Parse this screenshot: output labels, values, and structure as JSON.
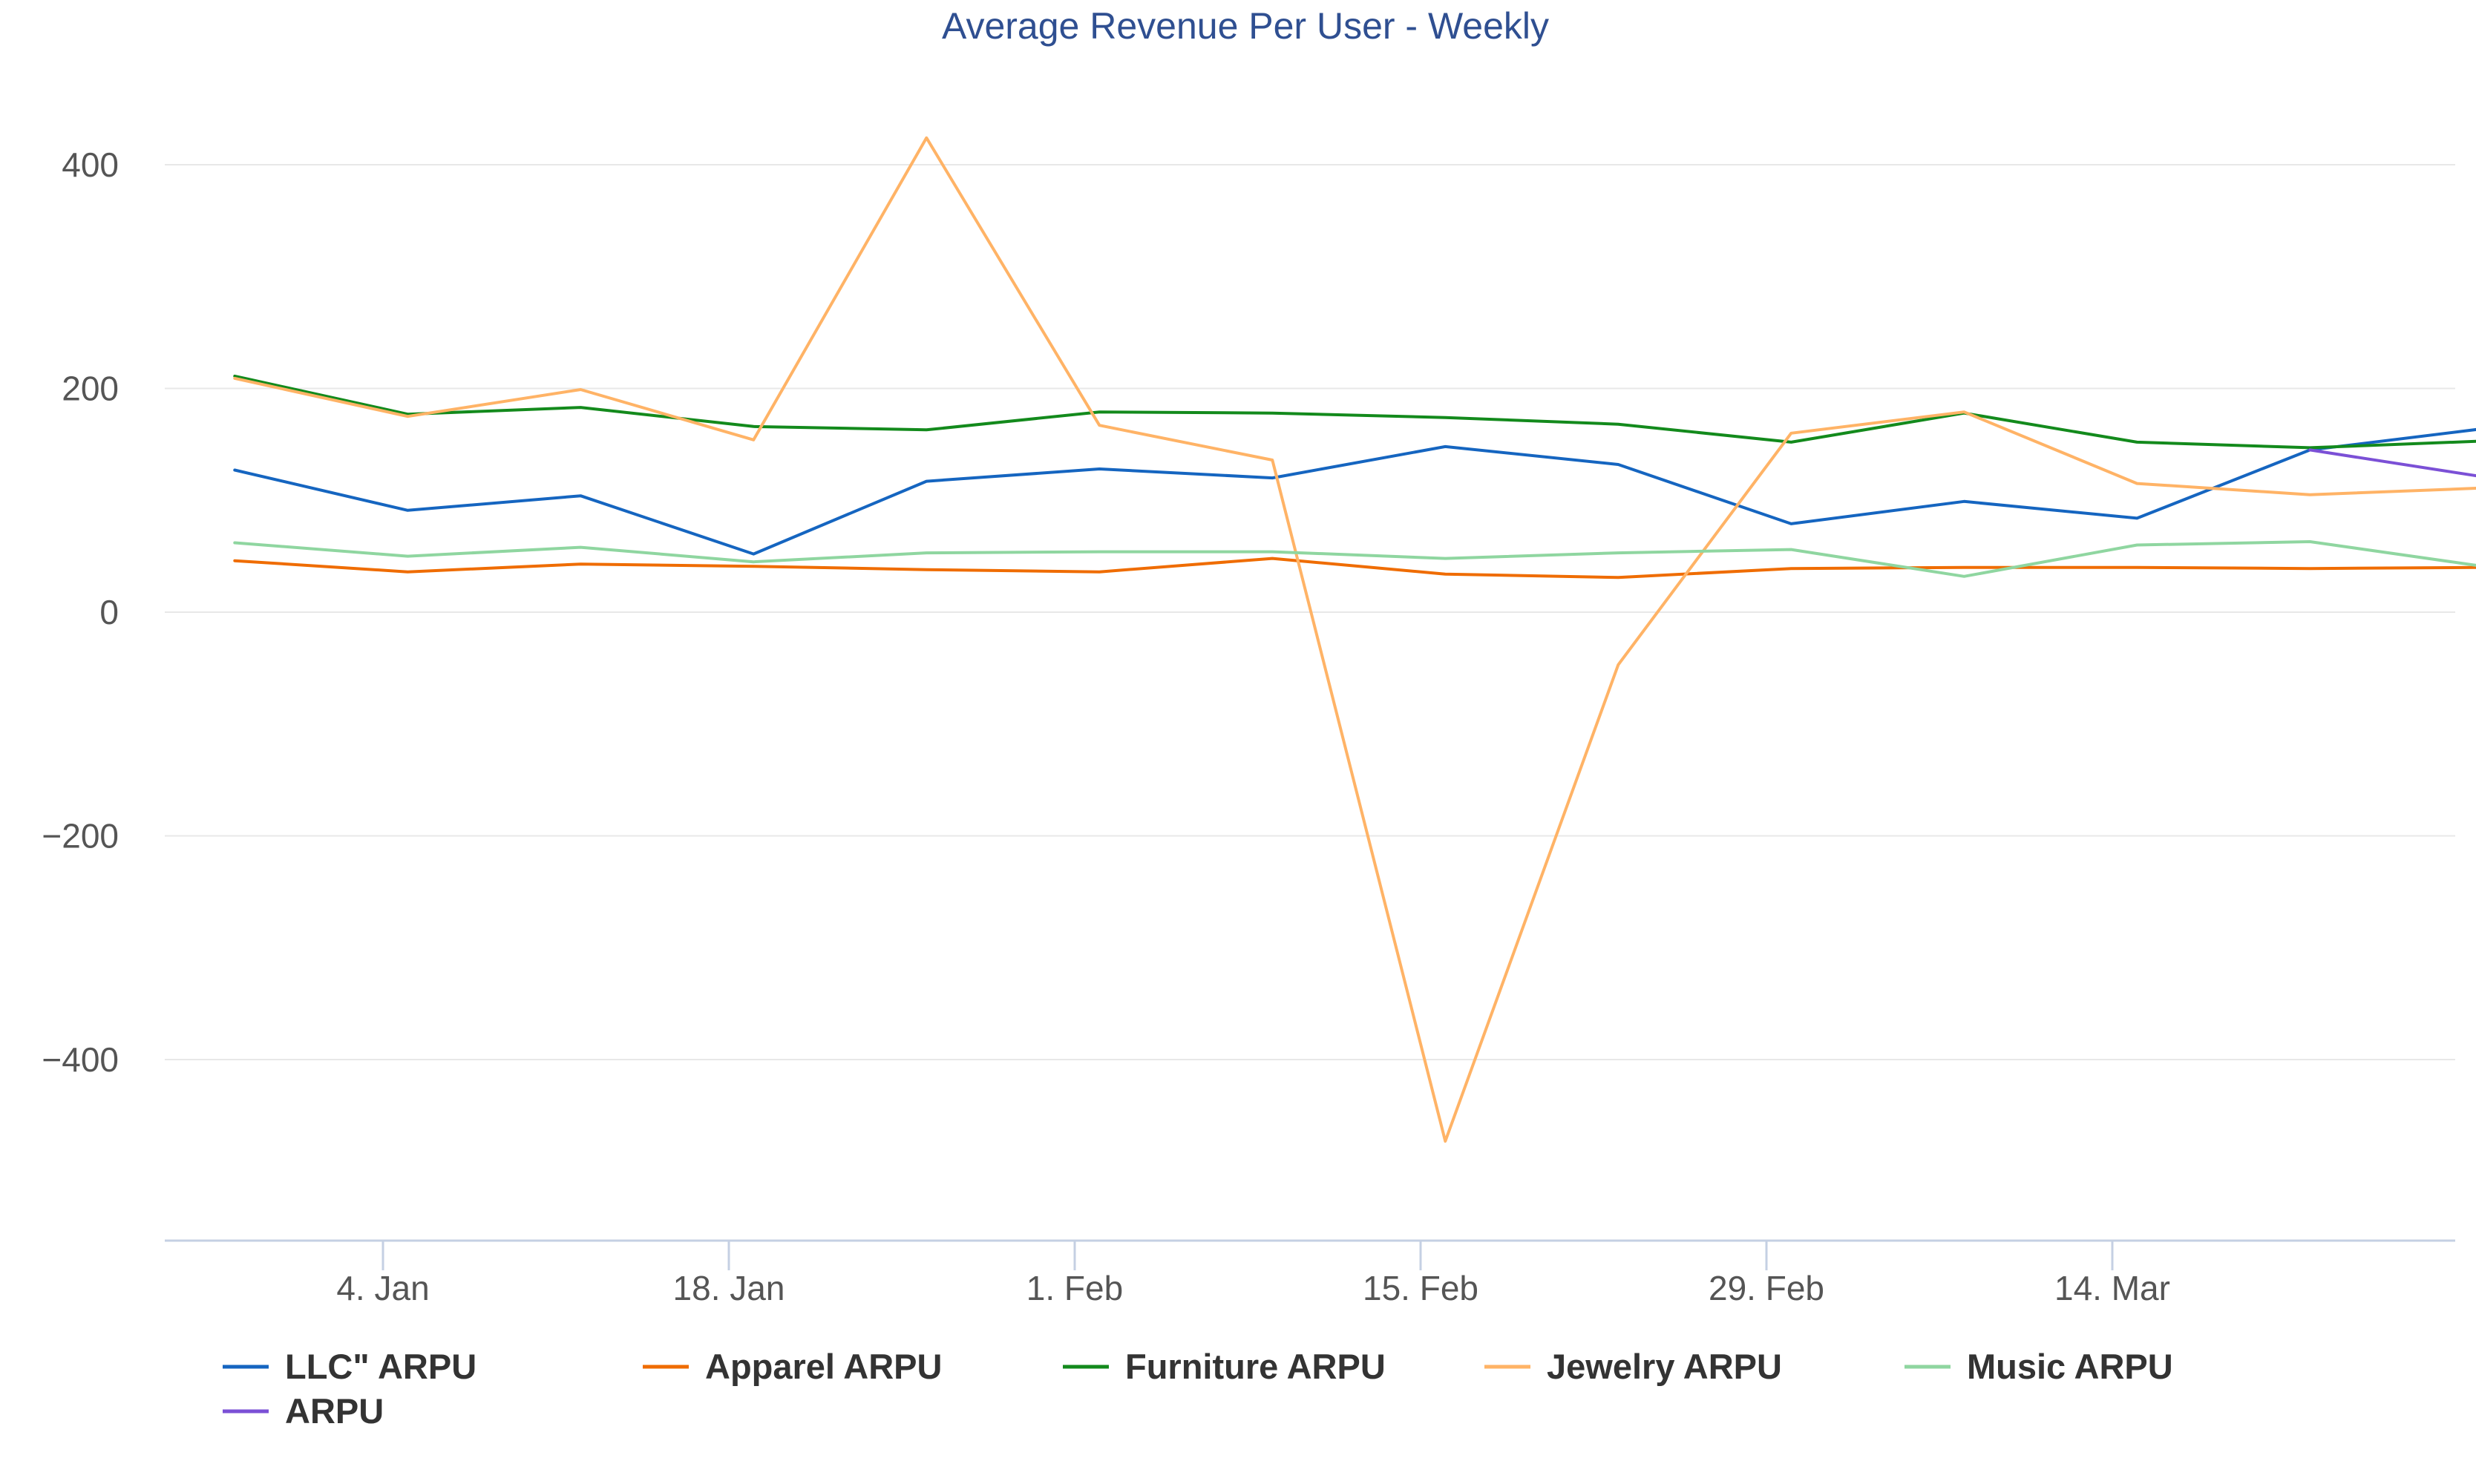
{
  "chart_data": {
    "type": "line",
    "title": "Average Revenue Per User - Weekly",
    "xlabel": "",
    "ylabel": "",
    "ylim": [
      -560,
      480
    ],
    "y_ticks": [
      {
        "value": 400,
        "label": "400"
      },
      {
        "value": 200,
        "label": "200"
      },
      {
        "value": 0,
        "label": "0"
      },
      {
        "value": -200,
        "label": "−200"
      },
      {
        "value": -400,
        "label": "−400"
      }
    ],
    "x_ticks": [
      {
        "date": "2016-01-04",
        "label": "4. Jan"
      },
      {
        "date": "2016-01-18",
        "label": "18. Jan"
      },
      {
        "date": "2016-02-01",
        "label": "1. Feb"
      },
      {
        "date": "2016-02-15",
        "label": "15. Feb"
      },
      {
        "date": "2016-02-29",
        "label": "29. Feb"
      },
      {
        "date": "2016-03-14",
        "label": "14. Mar"
      }
    ],
    "x": [
      "2015-12-29",
      "2016-01-05",
      "2016-01-12",
      "2016-01-19",
      "2016-01-26",
      "2016-02-02",
      "2016-02-09",
      "2016-02-16",
      "2016-02-23",
      "2016-03-01",
      "2016-03-08",
      "2016-03-15",
      "2016-03-22",
      "2016-03-29"
    ],
    "series": [
      {
        "name": "LLC\" ARPU",
        "color": "#1565c0",
        "values": [
          127,
          91,
          104,
          52,
          117,
          128,
          120,
          148,
          132,
          79,
          99,
          84,
          145,
          164
        ]
      },
      {
        "name": "Apparel ARPU",
        "color": "#ef6c00",
        "values": [
          46,
          36,
          43,
          41,
          38,
          36,
          48,
          34,
          31,
          39,
          40,
          40,
          39,
          40
        ]
      },
      {
        "name": "Furniture ARPU",
        "color": "#138a1c",
        "values": [
          211,
          177,
          183,
          166,
          163,
          179,
          178,
          174,
          168,
          152,
          178,
          152,
          147,
          153
        ]
      },
      {
        "name": "Jewelry ARPU",
        "color": "#ffb366",
        "values": [
          209,
          175,
          199,
          154,
          424,
          167,
          136,
          -473,
          -47,
          160,
          179,
          115,
          105,
          111
        ]
      },
      {
        "name": "Music ARPU",
        "color": "#8fd6a0",
        "values": [
          62,
          50,
          58,
          45,
          53,
          54,
          54,
          48,
          53,
          56,
          32,
          60,
          63,
          41
        ]
      },
      {
        "name": "ARPU",
        "color": "#7b50d6",
        "values": [
          null,
          null,
          null,
          null,
          null,
          null,
          null,
          null,
          null,
          null,
          null,
          null,
          145,
          121
        ]
      }
    ]
  }
}
